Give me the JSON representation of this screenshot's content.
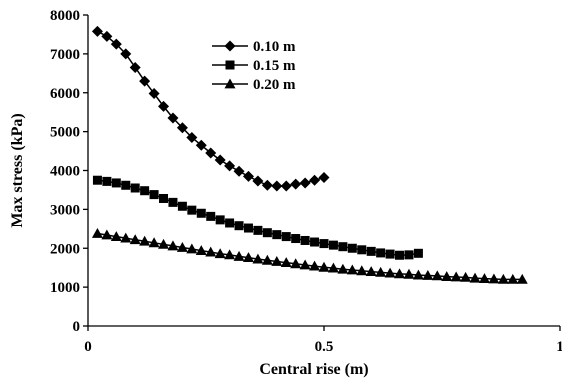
{
  "chart_data": {
    "type": "line",
    "title": "",
    "xlabel": "Central rise (m)",
    "ylabel": "Max stress (kPa)",
    "xlim": [
      0,
      1
    ],
    "ylim": [
      0,
      8000
    ],
    "x_ticks": [
      0,
      0.5,
      1
    ],
    "x_tick_labels": [
      "0",
      "0.5",
      "1"
    ],
    "y_ticks": [
      0,
      1000,
      2000,
      3000,
      4000,
      5000,
      6000,
      7000,
      8000
    ],
    "y_tick_labels": [
      "0",
      "1000",
      "2000",
      "3000",
      "4000",
      "5000",
      "6000",
      "7000",
      "8000"
    ],
    "grid": false,
    "legend_position": "top-center",
    "series": [
      {
        "name": "0.10 m",
        "marker": "diamond",
        "color": "#000000",
        "x": [
          0.02,
          0.04,
          0.06,
          0.08,
          0.1,
          0.12,
          0.14,
          0.16,
          0.18,
          0.2,
          0.22,
          0.24,
          0.26,
          0.28,
          0.3,
          0.32,
          0.34,
          0.36,
          0.38,
          0.4,
          0.42,
          0.44,
          0.46,
          0.48,
          0.5
        ],
        "y": [
          7580,
          7450,
          7250,
          7000,
          6650,
          6300,
          5980,
          5650,
          5350,
          5100,
          4850,
          4650,
          4450,
          4270,
          4120,
          3980,
          3850,
          3730,
          3620,
          3600,
          3600,
          3650,
          3680,
          3750,
          3820
        ]
      },
      {
        "name": "0.15 m",
        "marker": "square",
        "color": "#000000",
        "x": [
          0.02,
          0.04,
          0.06,
          0.08,
          0.1,
          0.12,
          0.14,
          0.16,
          0.18,
          0.2,
          0.22,
          0.24,
          0.26,
          0.28,
          0.3,
          0.32,
          0.34,
          0.36,
          0.38,
          0.4,
          0.42,
          0.44,
          0.46,
          0.48,
          0.5,
          0.52,
          0.54,
          0.56,
          0.58,
          0.6,
          0.62,
          0.64,
          0.66,
          0.68,
          0.7
        ],
        "y": [
          3750,
          3720,
          3680,
          3620,
          3550,
          3480,
          3380,
          3280,
          3180,
          3080,
          2980,
          2900,
          2820,
          2730,
          2650,
          2580,
          2520,
          2460,
          2400,
          2350,
          2300,
          2250,
          2200,
          2160,
          2120,
          2080,
          2040,
          2000,
          1960,
          1920,
          1880,
          1850,
          1820,
          1830,
          1870
        ]
      },
      {
        "name": "0.20 m",
        "marker": "triangle",
        "color": "#000000",
        "x": [
          0.02,
          0.04,
          0.06,
          0.08,
          0.1,
          0.12,
          0.14,
          0.16,
          0.18,
          0.2,
          0.22,
          0.24,
          0.26,
          0.28,
          0.3,
          0.32,
          0.34,
          0.36,
          0.38,
          0.4,
          0.42,
          0.44,
          0.46,
          0.48,
          0.5,
          0.52,
          0.54,
          0.56,
          0.58,
          0.6,
          0.62,
          0.64,
          0.66,
          0.68,
          0.7,
          0.72,
          0.74,
          0.76,
          0.78,
          0.8,
          0.82,
          0.84,
          0.86,
          0.88,
          0.9,
          0.92
        ],
        "y": [
          2380,
          2340,
          2300,
          2260,
          2220,
          2180,
          2140,
          2100,
          2060,
          2020,
          1980,
          1940,
          1900,
          1860,
          1830,
          1790,
          1760,
          1720,
          1690,
          1660,
          1630,
          1600,
          1570,
          1540,
          1510,
          1490,
          1460,
          1440,
          1420,
          1400,
          1380,
          1360,
          1340,
          1330,
          1310,
          1300,
          1290,
          1270,
          1260,
          1250,
          1230,
          1220,
          1210,
          1200,
          1200,
          1200
        ]
      }
    ]
  }
}
